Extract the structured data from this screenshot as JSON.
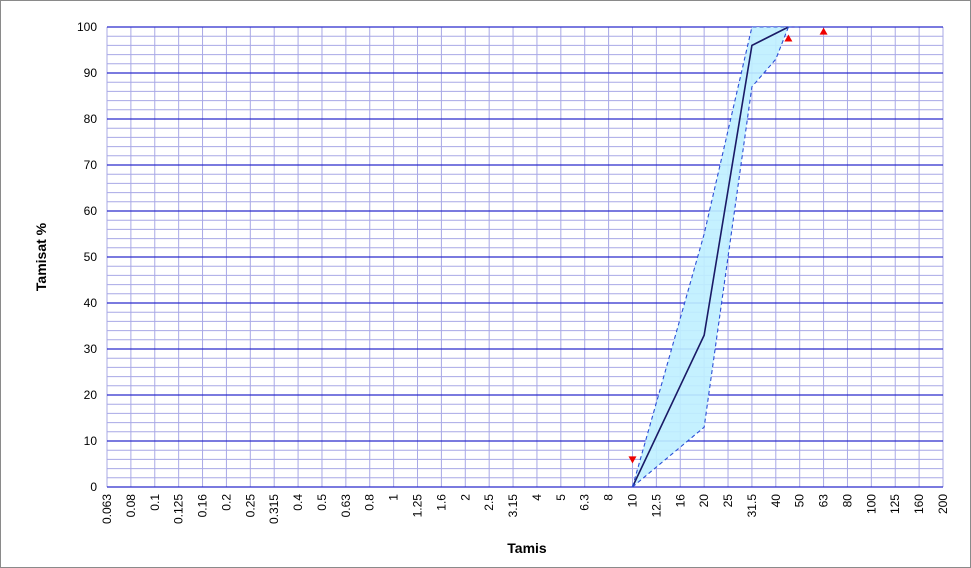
{
  "chart_data": {
    "type": "line",
    "title": "",
    "xlabel": "Tamis",
    "ylabel": "Tamisat %",
    "x_scale": "categorical-sieve",
    "x_ticks": [
      "0.063",
      "0.08",
      "0.1",
      "0.125",
      "0.16",
      "0.2",
      "0.25",
      "0.315",
      "0.4",
      "0.5",
      "0.63",
      "0.8",
      "1",
      "1.25",
      "1.6",
      "2",
      "2.5",
      "3.15",
      "4",
      "5",
      "6.3",
      "8",
      "10",
      "12.5",
      "16",
      "20",
      "25",
      "31.5",
      "40",
      "50",
      "63",
      "80",
      "100",
      "125",
      "160",
      "200"
    ],
    "ylim": [
      0,
      100
    ],
    "y_ticks": [
      0,
      10,
      20,
      30,
      40,
      50,
      60,
      70,
      80,
      90,
      100
    ],
    "grid": true,
    "series": [
      {
        "role": "curve",
        "points": [
          [
            10,
            0
          ],
          [
            20,
            33
          ],
          [
            31.5,
            96
          ],
          [
            45,
            100
          ]
        ]
      },
      {
        "role": "upper-limit",
        "points": [
          [
            10,
            0
          ],
          [
            20,
            55
          ],
          [
            31.5,
            100
          ],
          [
            50,
            100
          ]
        ]
      },
      {
        "role": "lower-limit",
        "points": [
          [
            10,
            0
          ],
          [
            20,
            13
          ],
          [
            31.5,
            87
          ],
          [
            40,
            93
          ],
          [
            45,
            100
          ]
        ]
      }
    ],
    "markers": [
      {
        "x": 10,
        "y": 6,
        "shape": "triangle-down"
      },
      {
        "x": 45,
        "y": 97.5,
        "shape": "triangle-up"
      },
      {
        "x": 63,
        "y": 99,
        "shape": "triangle-up"
      }
    ],
    "colors": {
      "major_grid": "#2a2acc",
      "minor_grid": "#a8a8e6",
      "curve": "#1a1a66",
      "envelope_line": "#2a4fd6",
      "envelope_fill": "#bff0ff",
      "marker": "#ee0000"
    }
  }
}
